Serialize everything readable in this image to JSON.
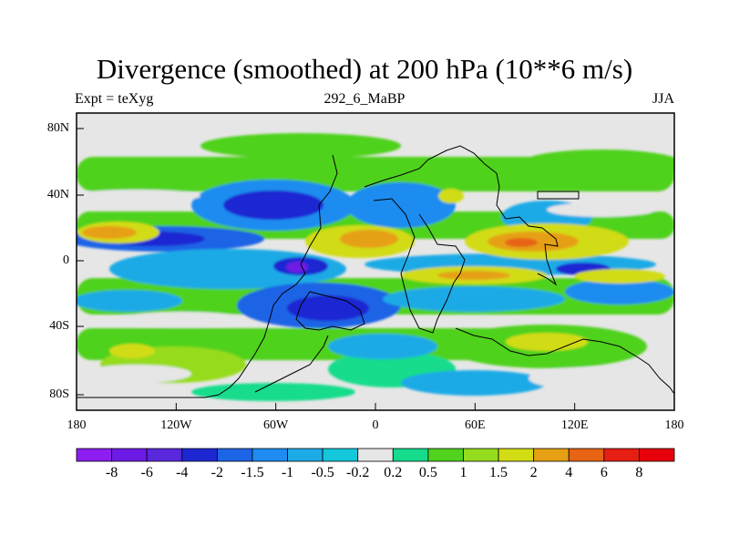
{
  "title": "Divergence (smoothed) at 200 hPa (10**6 m/s)",
  "subtitle_left": "Expt = teXyg",
  "subtitle_center": "292_6_MaBP",
  "subtitle_right": "JJA",
  "lat_ticks": [
    "80N",
    "40N",
    "0",
    "40S",
    "80S"
  ],
  "lon_ticks": [
    "180",
    "120W",
    "60W",
    "0",
    "60E",
    "120E",
    "180"
  ],
  "colorbar": {
    "labels": [
      "-8",
      "-6",
      "-4",
      "-2",
      "-1.5",
      "-1",
      "-0.5",
      "-0.2",
      "0.2",
      "0.5",
      "1",
      "1.5",
      "2",
      "4",
      "6",
      "8"
    ],
    "colors": [
      "#8c1ef0",
      "#6e1ae6",
      "#5a28dc",
      "#1e28d2",
      "#1e64e6",
      "#1e8cf0",
      "#1eaae6",
      "#14c8dc",
      "#e6e6e6",
      "#14dc8c",
      "#50d21e",
      "#96dc1e",
      "#d2dc14",
      "#e6a014",
      "#e66414",
      "#e61e14",
      "#e6000a"
    ]
  }
}
